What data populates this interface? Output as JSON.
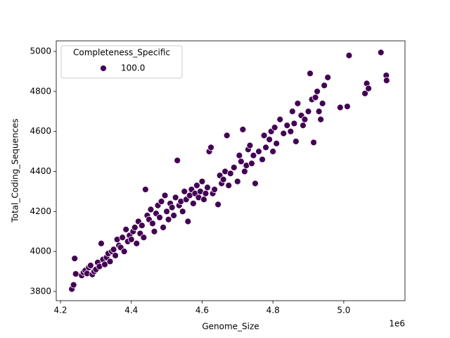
{
  "chart_data": {
    "type": "scatter",
    "x_label": "Genome_Size",
    "y_label": "Total_Coding_Sequences",
    "x_offset_label": "1e6",
    "legend_title": "Completeness_Specific",
    "legend": "upper left",
    "xlim": [
      4188000,
      5173000
    ],
    "ylim": [
      3754,
      5053
    ],
    "xticks": [
      {
        "value": 4200000,
        "label": "4.2"
      },
      {
        "value": 4400000,
        "label": "4.4"
      },
      {
        "value": 4600000,
        "label": "4.6"
      },
      {
        "value": 4800000,
        "label": "4.8"
      },
      {
        "value": 5000000,
        "label": "5.0"
      }
    ],
    "yticks": [
      3800,
      4000,
      4200,
      4400,
      4600,
      4800,
      5000
    ],
    "series": [
      {
        "name": "100.0",
        "color": "#440154",
        "x": [
          4232000,
          4237000,
          4240000,
          4243000,
          4260000,
          4265000,
          4270000,
          4275000,
          4280000,
          4285000,
          4290000,
          4295000,
          4300000,
          4305000,
          4310000,
          4315000,
          4320000,
          4325000,
          4330000,
          4335000,
          4340000,
          4345000,
          4350000,
          4355000,
          4360000,
          4365000,
          4370000,
          4375000,
          4380000,
          4385000,
          4390000,
          4395000,
          4400000,
          4405000,
          4410000,
          4415000,
          4420000,
          4425000,
          4430000,
          4435000,
          4440000,
          4445000,
          4450000,
          4455000,
          4460000,
          4465000,
          4470000,
          4475000,
          4480000,
          4485000,
          4490000,
          4495000,
          4500000,
          4505000,
          4510000,
          4515000,
          4520000,
          4525000,
          4530000,
          4535000,
          4540000,
          4545000,
          4550000,
          4555000,
          4560000,
          4565000,
          4570000,
          4575000,
          4580000,
          4585000,
          4590000,
          4595000,
          4600000,
          4605000,
          4610000,
          4615000,
          4620000,
          4625000,
          4630000,
          4635000,
          4645000,
          4650000,
          4655000,
          4660000,
          4665000,
          4670000,
          4675000,
          4680000,
          4690000,
          4700000,
          4705000,
          4710000,
          4715000,
          4720000,
          4725000,
          4730000,
          4735000,
          4740000,
          4745000,
          4750000,
          4760000,
          4770000,
          4775000,
          4780000,
          4790000,
          4795000,
          4800000,
          4805000,
          4810000,
          4820000,
          4830000,
          4840000,
          4850000,
          4855000,
          4860000,
          4865000,
          4870000,
          4880000,
          4885000,
          4890000,
          4900000,
          4905000,
          4910000,
          4915000,
          4920000,
          4925000,
          4930000,
          4935000,
          4940000,
          4945000,
          4955000,
          4990000,
          5010000,
          5015000,
          5060000,
          5065000,
          5070000,
          5105000,
          5120000,
          5121000
        ],
        "values": [
          3812,
          3833,
          3965,
          3888,
          3880,
          3895,
          3905,
          3890,
          3920,
          3930,
          3885,
          3900,
          3910,
          3945,
          3925,
          4040,
          3960,
          3935,
          3970,
          3990,
          3950,
          4000,
          4010,
          3980,
          4060,
          4030,
          4020,
          4070,
          4000,
          4110,
          4050,
          4080,
          4060,
          4100,
          4120,
          4040,
          4150,
          4090,
          4130,
          4070,
          4310,
          4180,
          4160,
          4210,
          4140,
          4100,
          4190,
          4230,
          4170,
          4250,
          4120,
          4280,
          4200,
          4160,
          4240,
          4220,
          4180,
          4270,
          4455,
          4230,
          4250,
          4200,
          4300,
          4260,
          4150,
          4280,
          4310,
          4240,
          4290,
          4330,
          4270,
          4300,
          4350,
          4260,
          4290,
          4320,
          4500,
          4520,
          4290,
          4310,
          4235,
          4380,
          4340,
          4360,
          4400,
          4580,
          4330,
          4390,
          4420,
          4350,
          4480,
          4450,
          4610,
          4400,
          4430,
          4510,
          4530,
          4440,
          4480,
          4340,
          4500,
          4460,
          4580,
          4520,
          4560,
          4600,
          4500,
          4620,
          4540,
          4660,
          4590,
          4630,
          4600,
          4700,
          4640,
          4550,
          4740,
          4680,
          4630,
          4660,
          4700,
          4890,
          4760,
          4545,
          4770,
          4800,
          4700,
          4660,
          4740,
          4830,
          4870,
          4720,
          4725,
          4980,
          4790,
          4840,
          4815,
          4995,
          4880,
          4855
        ]
      }
    ]
  }
}
